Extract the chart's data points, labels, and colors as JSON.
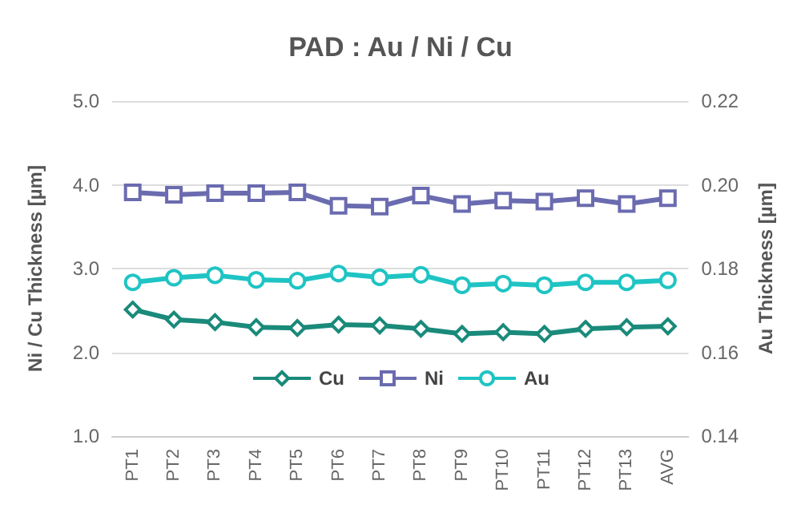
{
  "chart_data": {
    "type": "line",
    "title": "PAD : Au / Ni / Cu",
    "ylabel": "Ni / Cu Thickness [µm]",
    "y2label": "Au Thickness [µm]",
    "categories": [
      "PT1",
      "PT2",
      "PT3",
      "PT4",
      "PT5",
      "PT6",
      "PT7",
      "PT8",
      "PT9",
      "PT10",
      "PT11",
      "PT12",
      "PT13",
      "AVG"
    ],
    "series": [
      {
        "name": "Cu",
        "color": "#1a8a7a",
        "marker": "diamond",
        "values": [
          2.51,
          2.39,
          2.36,
          2.3,
          2.29,
          2.33,
          2.32,
          2.28,
          2.22,
          2.24,
          2.22,
          2.28,
          2.3,
          2.31
        ]
      },
      {
        "name": "Ni",
        "color": "#6b6bb0",
        "marker": "square",
        "values": [
          3.91,
          3.88,
          3.9,
          3.9,
          3.91,
          3.75,
          3.74,
          3.87,
          3.77,
          3.81,
          3.8,
          3.84,
          3.77,
          3.84
        ]
      },
      {
        "name": "Au",
        "color": "#1fc4c4",
        "marker": "circle",
        "axis": "y2",
        "values": [
          0.1767,
          0.1778,
          0.1784,
          0.1773,
          0.1771,
          0.1788,
          0.1779,
          0.1785,
          0.176,
          0.1764,
          0.176,
          0.1767,
          0.1767,
          0.1772
        ]
      }
    ],
    "ylim": [
      1,
      5
    ],
    "yticks": [
      {
        "value": 1,
        "label": "1.0"
      },
      {
        "value": 2,
        "label": "2.0"
      },
      {
        "value": 3,
        "label": "3.0"
      },
      {
        "value": 4,
        "label": "4.0"
      },
      {
        "value": 5,
        "label": "5.0"
      }
    ],
    "y2lim": [
      0.14,
      0.22
    ],
    "y2ticks": [
      0.14,
      0.16,
      0.18,
      {
        "value": 0.2,
        "label": "0.20"
      },
      0.22
    ],
    "grid": "y",
    "legend": "bottom",
    "line_style": "solid"
  }
}
